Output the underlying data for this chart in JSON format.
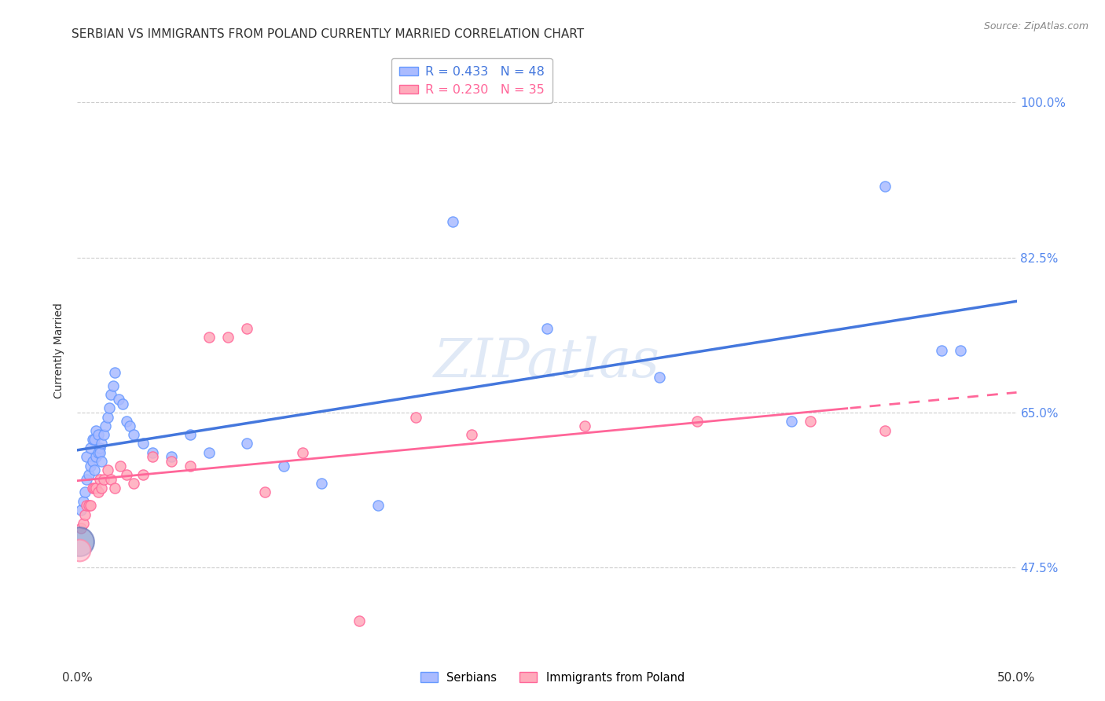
{
  "title": "SERBIAN VS IMMIGRANTS FROM POLAND CURRENTLY MARRIED CORRELATION CHART",
  "source": "Source: ZipAtlas.com",
  "ylabel": "Currently Married",
  "ytick_labels": [
    "47.5%",
    "65.0%",
    "82.5%",
    "100.0%"
  ],
  "ytick_values": [
    0.475,
    0.65,
    0.825,
    1.0
  ],
  "xlim": [
    0.0,
    0.5
  ],
  "ylim": [
    0.38,
    1.06
  ],
  "watermark": "ZIPatlas",
  "legend_labels": [
    "Serbians",
    "Immigrants from Poland"
  ],
  "serbian_color_face": "#aabbff",
  "serbian_color_edge": "#6699ff",
  "poland_color_face": "#ffaabb",
  "poland_color_edge": "#ff6699",
  "line_blue": "#4477dd",
  "line_pink": "#ff6699",
  "serbian_x": [
    0.002,
    0.003,
    0.004,
    0.005,
    0.005,
    0.006,
    0.007,
    0.007,
    0.008,
    0.008,
    0.009,
    0.009,
    0.01,
    0.01,
    0.011,
    0.011,
    0.012,
    0.012,
    0.013,
    0.013,
    0.014,
    0.015,
    0.016,
    0.017,
    0.018,
    0.019,
    0.02,
    0.022,
    0.024,
    0.026,
    0.028,
    0.03,
    0.035,
    0.04,
    0.05,
    0.06,
    0.07,
    0.09,
    0.11,
    0.13,
    0.16,
    0.2,
    0.25,
    0.31,
    0.38,
    0.43,
    0.46,
    0.47
  ],
  "serbian_y": [
    0.54,
    0.55,
    0.56,
    0.575,
    0.6,
    0.58,
    0.59,
    0.61,
    0.595,
    0.62,
    0.585,
    0.62,
    0.6,
    0.63,
    0.605,
    0.625,
    0.61,
    0.605,
    0.595,
    0.615,
    0.625,
    0.635,
    0.645,
    0.655,
    0.67,
    0.68,
    0.695,
    0.665,
    0.66,
    0.64,
    0.635,
    0.625,
    0.615,
    0.605,
    0.6,
    0.625,
    0.605,
    0.615,
    0.59,
    0.57,
    0.545,
    0.865,
    0.745,
    0.69,
    0.64,
    0.905,
    0.72,
    0.72
  ],
  "poland_x": [
    0.002,
    0.003,
    0.004,
    0.005,
    0.006,
    0.007,
    0.008,
    0.009,
    0.01,
    0.011,
    0.012,
    0.013,
    0.014,
    0.016,
    0.018,
    0.02,
    0.023,
    0.026,
    0.03,
    0.035,
    0.04,
    0.05,
    0.06,
    0.07,
    0.08,
    0.09,
    0.1,
    0.12,
    0.15,
    0.18,
    0.21,
    0.27,
    0.33,
    0.39,
    0.43
  ],
  "poland_y": [
    0.52,
    0.525,
    0.535,
    0.545,
    0.545,
    0.545,
    0.565,
    0.565,
    0.565,
    0.56,
    0.575,
    0.565,
    0.575,
    0.585,
    0.575,
    0.565,
    0.59,
    0.58,
    0.57,
    0.58,
    0.6,
    0.595,
    0.59,
    0.735,
    0.735,
    0.745,
    0.56,
    0.605,
    0.415,
    0.645,
    0.625,
    0.635,
    0.64,
    0.64,
    0.63
  ],
  "big_blue_x": [
    0.001
  ],
  "big_blue_y": [
    0.505
  ],
  "big_blue_size": 700,
  "big_pink_x": [
    0.001
  ],
  "big_pink_y": [
    0.495
  ],
  "big_pink_size": 400,
  "serbian_marker_size": 90,
  "poland_marker_size": 90,
  "title_fontsize": 11,
  "axis_label_fontsize": 10,
  "tick_fontsize": 11,
  "source_fontsize": 9,
  "grid_color": "#cccccc",
  "background_color": "#ffffff",
  "title_color": "#333333",
  "right_tick_color": "#5588ee",
  "regression_cutoff": 0.41,
  "legend_R_N_blue": "R = 0.433   N = 48",
  "legend_R_N_pink": "R = 0.230   N = 35"
}
